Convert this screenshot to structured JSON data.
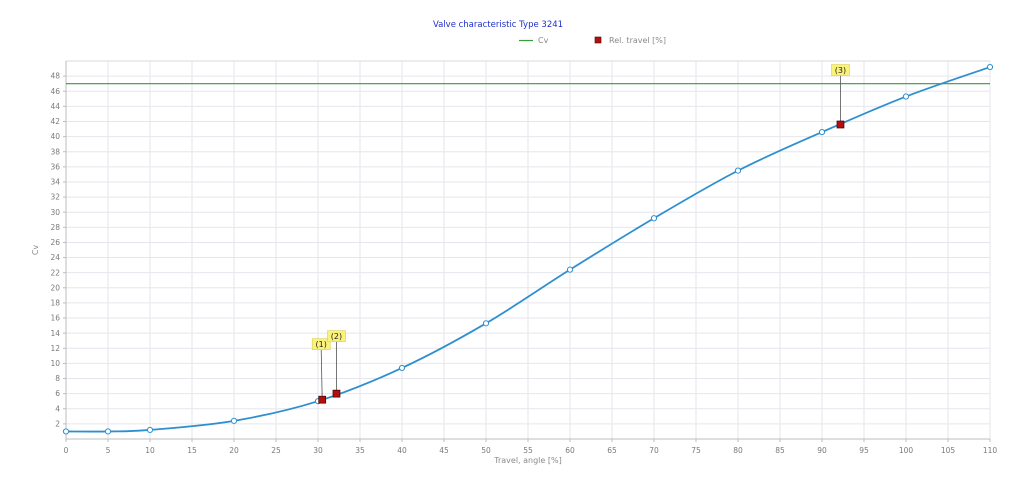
{
  "chart_data": {
    "type": "line",
    "title": "Valve characteristic Type 3241",
    "xlabel": "Travel, angle [%]",
    "ylabel": "Cv",
    "xlim": [
      0,
      110
    ],
    "ylim": [
      0,
      50
    ],
    "x_ticks": [
      0,
      5,
      10,
      15,
      20,
      25,
      30,
      35,
      40,
      45,
      50,
      55,
      60,
      65,
      70,
      75,
      80,
      85,
      90,
      95,
      100,
      105,
      110
    ],
    "y_ticks": [
      2,
      4,
      6,
      8,
      10,
      12,
      14,
      16,
      18,
      20,
      22,
      24,
      26,
      28,
      30,
      32,
      34,
      36,
      38,
      40,
      42,
      44,
      46,
      48
    ],
    "grid": true,
    "legend_position": "top-center",
    "series": [
      {
        "name": "Cv",
        "kind": "reference-line",
        "color": "#3a9a3a",
        "x": [
          0,
          110
        ],
        "y": [
          47,
          47
        ]
      },
      {
        "name": "Rel. travel [%]",
        "kind": "markers",
        "color": "#b01010",
        "x": [
          30.5,
          32.2,
          92.2
        ],
        "y": [
          5.2,
          6.0,
          41.6
        ],
        "annotations": [
          "(1)",
          "(2)",
          "(3)"
        ]
      }
    ],
    "curve": {
      "color": "#2e8fd0",
      "x": [
        0,
        5,
        10,
        20,
        30,
        40,
        50,
        60,
        70,
        80,
        90,
        100,
        110
      ],
      "y": [
        1.0,
        1.0,
        1.2,
        2.4,
        5.0,
        9.4,
        15.3,
        22.4,
        29.2,
        35.5,
        40.6,
        45.3,
        49.2
      ]
    }
  }
}
